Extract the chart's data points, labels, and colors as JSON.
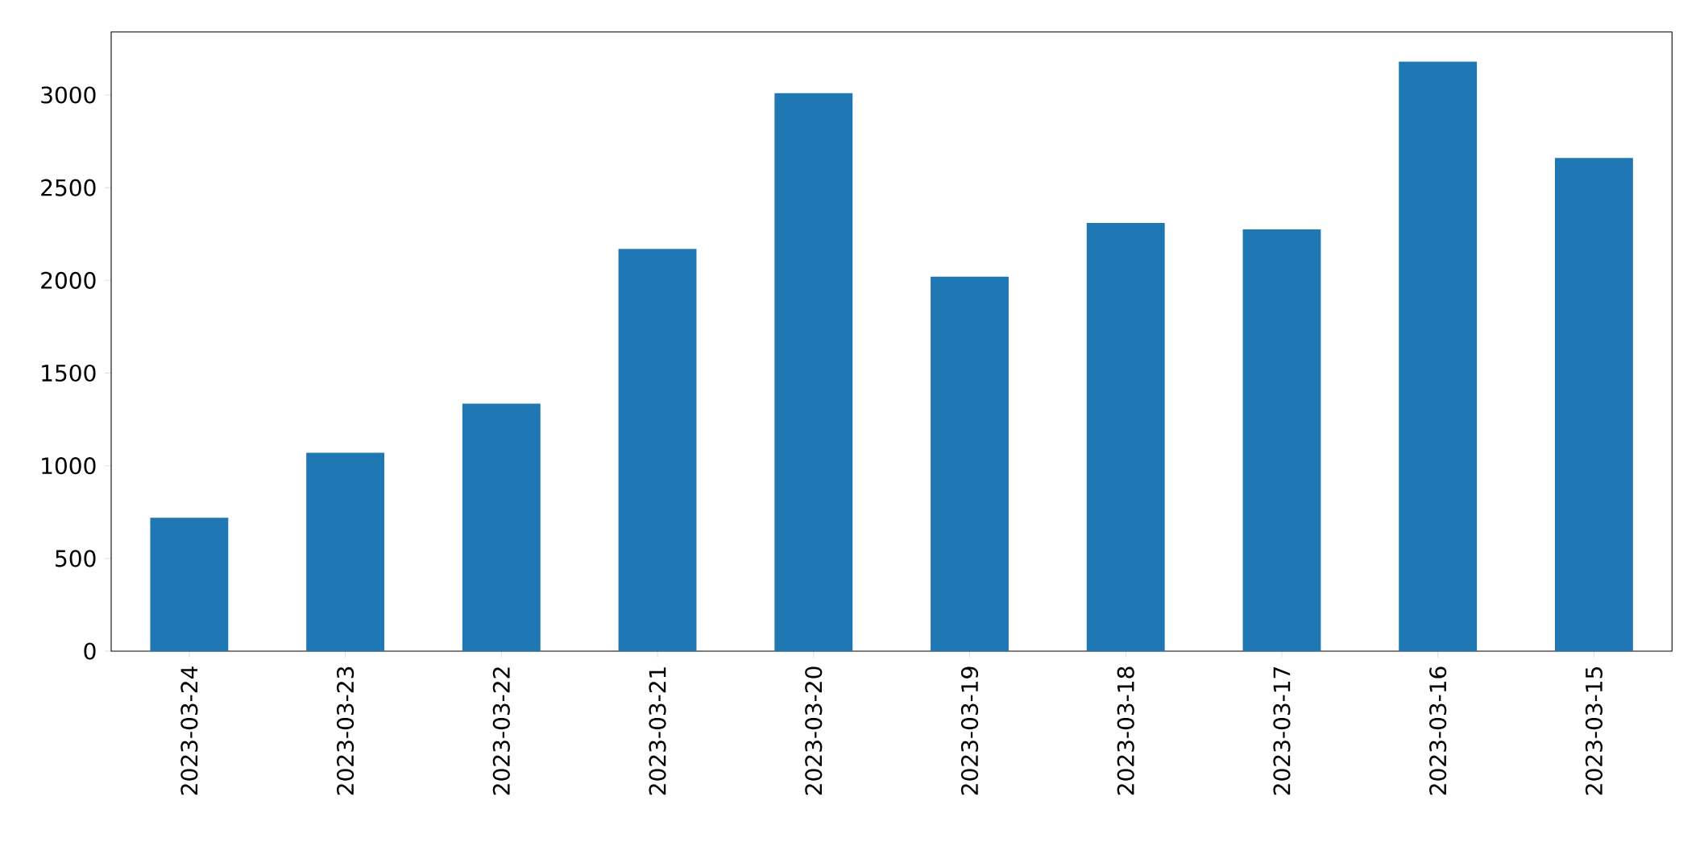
{
  "chart_data": {
    "type": "bar",
    "categories": [
      "2023-03-24",
      "2023-03-23",
      "2023-03-22",
      "2023-03-21",
      "2023-03-20",
      "2023-03-19",
      "2023-03-18",
      "2023-03-17",
      "2023-03-16",
      "2023-03-15"
    ],
    "values": [
      720,
      1070,
      1335,
      2170,
      3010,
      2020,
      2310,
      2275,
      3180,
      2660
    ],
    "color": "#1f77b4",
    "ylim": [
      0,
      3340
    ],
    "yticks": [
      0,
      500,
      1000,
      1500,
      2000,
      2500,
      3000
    ],
    "grid": false
  }
}
